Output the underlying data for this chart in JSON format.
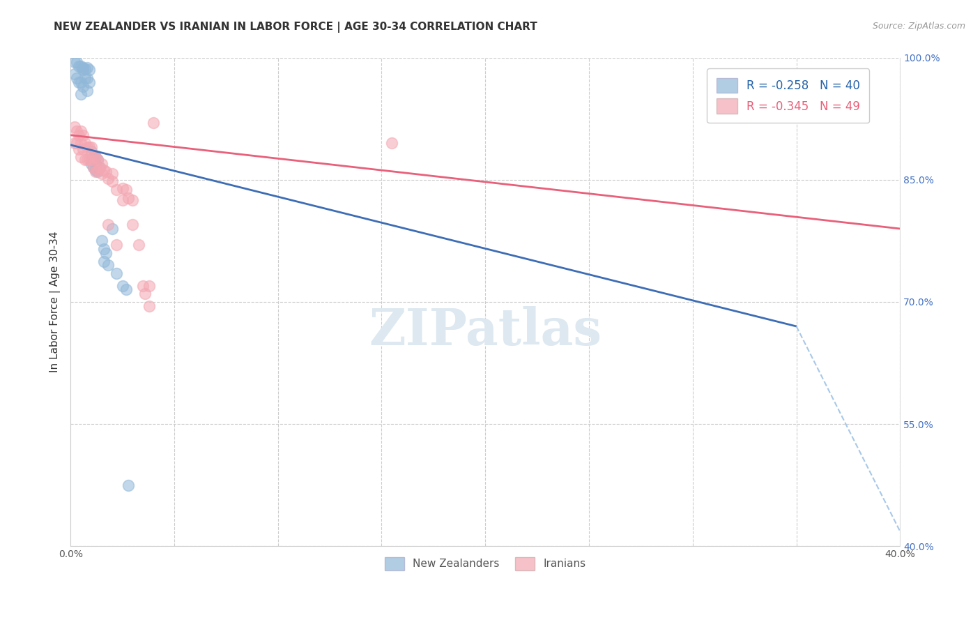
{
  "title": "NEW ZEALANDER VS IRANIAN IN LABOR FORCE | AGE 30-34 CORRELATION CHART",
  "source": "Source: ZipAtlas.com",
  "ylabel": "In Labor Force | Age 30-34",
  "legend_blue_r": "R = -0.258",
  "legend_blue_n": "N = 40",
  "legend_pink_r": "R = -0.345",
  "legend_pink_n": "N = 49",
  "legend_blue_label": "New Zealanders",
  "legend_pink_label": "Iranians",
  "xlim": [
    0.0,
    0.4
  ],
  "ylim": [
    0.4,
    1.0
  ],
  "xticks": [
    0.0,
    0.05,
    0.1,
    0.15,
    0.2,
    0.25,
    0.3,
    0.35,
    0.4
  ],
  "yticks_right": [
    1.0,
    0.85,
    0.7,
    0.55,
    0.4
  ],
  "ytick_right_labels": [
    "100.0%",
    "85.0%",
    "70.0%",
    "55.0%",
    "40.0%"
  ],
  "blue_scatter_color": "#91b8d9",
  "pink_scatter_color": "#f4a7b2",
  "blue_line_color": "#3d6db5",
  "pink_line_color": "#e8607a",
  "dashed_line_color": "#a8c8e8",
  "watermark_color": "#dde8f0",
  "nz_x": [
    0.002,
    0.002,
    0.003,
    0.003,
    0.004,
    0.004,
    0.005,
    0.005,
    0.005,
    0.006,
    0.006,
    0.006,
    0.007,
    0.007,
    0.008,
    0.008,
    0.008,
    0.009,
    0.009,
    0.01,
    0.01,
    0.01,
    0.011,
    0.011,
    0.012,
    0.012,
    0.012,
    0.013,
    0.013,
    0.014,
    0.015,
    0.016,
    0.016,
    0.017,
    0.018,
    0.02,
    0.022,
    0.025,
    0.027,
    0.028
  ],
  "nz_y": [
    0.995,
    0.98,
    0.995,
    0.975,
    0.99,
    0.97,
    0.99,
    0.97,
    0.955,
    0.988,
    0.985,
    0.965,
    0.986,
    0.975,
    0.988,
    0.975,
    0.96,
    0.985,
    0.97,
    0.885,
    0.875,
    0.87,
    0.878,
    0.865,
    0.878,
    0.87,
    0.862,
    0.875,
    0.86,
    0.865,
    0.775,
    0.765,
    0.75,
    0.76,
    0.745,
    0.79,
    0.735,
    0.72,
    0.715,
    0.475
  ],
  "iran_x": [
    0.002,
    0.002,
    0.003,
    0.003,
    0.004,
    0.004,
    0.005,
    0.005,
    0.005,
    0.006,
    0.006,
    0.007,
    0.007,
    0.008,
    0.008,
    0.009,
    0.009,
    0.01,
    0.01,
    0.011,
    0.011,
    0.012,
    0.012,
    0.013,
    0.013,
    0.014,
    0.015,
    0.015,
    0.016,
    0.017,
    0.018,
    0.02,
    0.02,
    0.022,
    0.025,
    0.025,
    0.027,
    0.028,
    0.03,
    0.033,
    0.035,
    0.036,
    0.038,
    0.038,
    0.04,
    0.018,
    0.022,
    0.03,
    0.155
  ],
  "iran_y": [
    0.915,
    0.895,
    0.91,
    0.895,
    0.905,
    0.888,
    0.91,
    0.895,
    0.878,
    0.905,
    0.888,
    0.895,
    0.875,
    0.89,
    0.875,
    0.89,
    0.875,
    0.89,
    0.875,
    0.878,
    0.865,
    0.878,
    0.86,
    0.875,
    0.862,
    0.865,
    0.87,
    0.858,
    0.862,
    0.86,
    0.852,
    0.858,
    0.848,
    0.838,
    0.84,
    0.825,
    0.838,
    0.828,
    0.825,
    0.77,
    0.72,
    0.71,
    0.72,
    0.695,
    0.92,
    0.795,
    0.77,
    0.795,
    0.895
  ],
  "blue_line_x": [
    0.0,
    0.35
  ],
  "blue_line_y": [
    0.893,
    0.67
  ],
  "pink_line_x": [
    0.0,
    0.4
  ],
  "pink_line_y": [
    0.905,
    0.79
  ],
  "dashed_line_x": [
    0.35,
    0.4
  ],
  "dashed_line_y": [
    0.67,
    0.418
  ]
}
